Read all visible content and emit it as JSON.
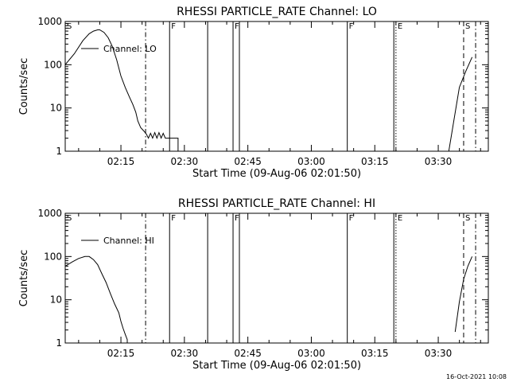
{
  "footer_timestamp": "16-Oct-2021 10:08",
  "chart_data": [
    {
      "type": "line",
      "title": "RHESSI PARTICLE_RATE Channel: LO",
      "xlabel": "Start Time (09-Aug-06 02:01:50)",
      "ylabel": "Counts/sec",
      "yscale": "log",
      "ylim": [
        1,
        1000
      ],
      "xlim": [
        "02:01:50",
        "03:41:50"
      ],
      "x_ticks": [
        "02:15",
        "02:30",
        "02:45",
        "03:00",
        "03:15",
        "03:30"
      ],
      "y_ticks": [
        "1",
        "10",
        "100",
        "1000"
      ],
      "legend": {
        "location": "top-left",
        "label": "Channel: LO"
      },
      "series": [
        {
          "name": "Channel: LO",
          "segments": [
            {
              "x": [
                "02:01:50",
                "02:04:00",
                "02:06:00",
                "02:07:30",
                "02:08:30",
                "02:09:30",
                "02:10:00",
                "02:11:00",
                "02:12:00",
                "02:13:00",
                "02:14:00",
                "02:15:00",
                "02:16:00",
                "02:17:00",
                "02:17:50",
                "02:18:30",
                "02:19:00",
                "02:19:40",
                "02:20:20",
                "02:21:00",
                "02:21:30",
                "02:22:00",
                "02:22:30",
                "02:23:00",
                "02:23:30",
                "02:24:00",
                "02:24:30",
                "02:25:00",
                "02:25:30",
                "02:26:00",
                "02:27:30",
                "02:28:30",
                "02:28:30"
              ],
              "y": [
                100,
                180,
                360,
                520,
                600,
                640,
                640,
                560,
                420,
                260,
                130,
                55,
                30,
                18,
                12,
                8,
                5,
                3.5,
                3.0,
                2.5,
                2.0,
                2.6,
                2.0,
                2.7,
                2.0,
                2.7,
                2.0,
                2.6,
                2.0,
                2.0,
                2.0,
                2.0,
                1.0
              ]
            },
            {
              "x": [
                "03:32:30",
                "03:33:30",
                "03:35:00",
                "03:36:30",
                "03:38:00"
              ],
              "y": [
                1.0,
                4.0,
                30,
                70,
                150
              ]
            }
          ]
        }
      ],
      "markers": [
        {
          "time": "02:01:50",
          "label": "S",
          "style": "none"
        },
        {
          "time": "02:20:50",
          "label": "",
          "style": "dash-dot"
        },
        {
          "time": "02:26:30",
          "label": "F",
          "style": "solid"
        },
        {
          "time": "02:35:30",
          "label": "",
          "style": "solid"
        },
        {
          "time": "02:41:30",
          "label": "F",
          "style": "solid"
        },
        {
          "time": "02:43:00",
          "label": "",
          "style": "solid"
        },
        {
          "time": "03:08:30",
          "label": "F",
          "style": "solid"
        },
        {
          "time": "03:19:30",
          "label": "",
          "style": "solid"
        },
        {
          "time": "03:20:00",
          "label": "E",
          "style": "dotted"
        },
        {
          "time": "03:36:00",
          "label": "S",
          "style": "dashed"
        },
        {
          "time": "03:38:50",
          "label": "",
          "style": "dash-dot"
        }
      ]
    },
    {
      "type": "line",
      "title": "RHESSI PARTICLE_RATE Channel: HI",
      "xlabel": "Start Time (09-Aug-06 02:01:50)",
      "ylabel": "Counts/sec",
      "yscale": "log",
      "ylim": [
        1,
        1000
      ],
      "xlim": [
        "02:01:50",
        "03:41:50"
      ],
      "x_ticks": [
        "02:15",
        "02:30",
        "02:45",
        "03:00",
        "03:15",
        "03:30"
      ],
      "y_ticks": [
        "1",
        "10",
        "100",
        "1000"
      ],
      "legend": {
        "location": "top-left",
        "label": "Channel: HI"
      },
      "series": [
        {
          "name": "Channel: HI",
          "segments": [
            {
              "x": [
                "02:01:50",
                "02:03:30",
                "02:05:00",
                "02:06:30",
                "02:07:30",
                "02:08:30",
                "02:09:30",
                "02:10:30",
                "02:11:30",
                "02:12:30",
                "02:13:30",
                "02:14:30",
                "02:15:00",
                "02:15:30",
                "02:16:00",
                "02:16:30",
                "02:16:30"
              ],
              "y": [
                60,
                75,
                90,
                100,
                100,
                85,
                65,
                40,
                25,
                14,
                8,
                5,
                3.2,
                2.2,
                1.6,
                1.2,
                1.0
              ]
            },
            {
              "x": [
                "03:34:00",
                "03:35:00",
                "03:36:00",
                "03:37:00",
                "03:38:00"
              ],
              "y": [
                1.8,
                9,
                30,
                60,
                100
              ]
            }
          ]
        }
      ],
      "markers": [
        {
          "time": "02:01:50",
          "label": "S",
          "style": "none"
        },
        {
          "time": "02:20:50",
          "label": "",
          "style": "dash-dot"
        },
        {
          "time": "02:26:30",
          "label": "F",
          "style": "solid"
        },
        {
          "time": "02:35:30",
          "label": "",
          "style": "solid"
        },
        {
          "time": "02:41:30",
          "label": "F",
          "style": "solid"
        },
        {
          "time": "02:43:00",
          "label": "",
          "style": "solid"
        },
        {
          "time": "03:08:30",
          "label": "F",
          "style": "solid"
        },
        {
          "time": "03:19:30",
          "label": "",
          "style": "solid"
        },
        {
          "time": "03:20:00",
          "label": "E",
          "style": "dotted"
        },
        {
          "time": "03:36:00",
          "label": "S",
          "style": "dashed"
        },
        {
          "time": "03:38:50",
          "label": "",
          "style": "dash-dot"
        }
      ]
    }
  ]
}
